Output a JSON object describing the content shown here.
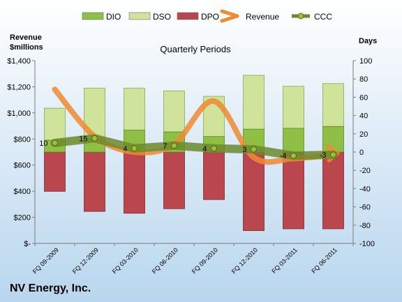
{
  "company_name": "NV Energy, Inc.",
  "colors": {
    "background_top": "#ffffff",
    "background_bottom": "#b8d6ee",
    "dio_fill": "#8fbf44",
    "dso_fill": "#cfe39a",
    "dpo_fill": "#b9474d",
    "revenue_line": "#f08a32",
    "ccc_line": "#6c8a2c",
    "ccc_marker": "#9fbf3a"
  },
  "chart_data": {
    "type": "bar",
    "title": "Quarterly Periods",
    "y_left_label": "Revenue\n$millions",
    "y_right_label": "Days",
    "y_left_range": [
      0,
      1400
    ],
    "y_left_ticks": [
      "$-",
      "$200",
      "$400",
      "$600",
      "$800",
      "$1,000",
      "$1,200",
      "$1,400"
    ],
    "y_left_tick_values": [
      0,
      200,
      400,
      600,
      800,
      1000,
      1200,
      1400
    ],
    "y_right_range": [
      -100,
      100
    ],
    "y_right_ticks": [
      "-100",
      "-80",
      "-60",
      "-40",
      "-20",
      "0",
      "20",
      "40",
      "60",
      "80",
      "100"
    ],
    "y_right_tick_values": [
      -100,
      -80,
      -60,
      -40,
      -20,
      0,
      20,
      40,
      60,
      80,
      100
    ],
    "categories": [
      "FQ 09-2009",
      "FQ 12-2009",
      "FQ 03-2010",
      "FQ 06-2010",
      "FQ 09-2010",
      "FQ 12-2010",
      "FQ 03-2011",
      "FQ 06-2011"
    ],
    "legend_position": "top",
    "grid": false,
    "series": [
      {
        "name": "DIO",
        "type": "bar",
        "axis": "right",
        "values": [
          13,
          15,
          24,
          22,
          17,
          25,
          26,
          28
        ]
      },
      {
        "name": "DSO",
        "type": "bar",
        "axis": "right",
        "values": [
          35,
          55,
          46,
          45,
          44,
          59,
          46,
          47
        ]
      },
      {
        "name": "DPO",
        "type": "bar",
        "axis": "right",
        "values": [
          -43,
          -65,
          -67,
          -62,
          -52,
          -86,
          -84,
          -84
        ]
      },
      {
        "name": "Revenue",
        "type": "line",
        "axis": "left",
        "values": [
          1180,
          820,
          700,
          760,
          1090,
          660,
          650,
          680
        ]
      },
      {
        "name": "CCC",
        "type": "line",
        "axis": "right",
        "values": [
          10,
          15,
          4,
          7,
          4,
          3,
          -4,
          -3
        ],
        "labels": [
          "10",
          "15",
          "4",
          "7",
          "4",
          "3",
          "-4",
          "-3"
        ]
      }
    ]
  }
}
